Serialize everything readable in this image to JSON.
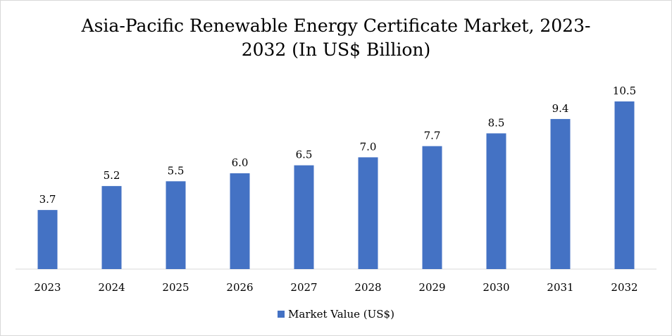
{
  "chart_data": {
    "type": "bar",
    "title_line1": "Asia-Pacific Renewable Energy Certificate Market, 2023-",
    "title_line2": "2032 (In US$ Billion)",
    "categories": [
      "2023",
      "2024",
      "2025",
      "2026",
      "2027",
      "2028",
      "2029",
      "2030",
      "2031",
      "2032"
    ],
    "series": [
      {
        "name": "Market Value (US$)",
        "values": [
          3.7,
          5.2,
          5.5,
          6.0,
          6.5,
          7.0,
          7.7,
          8.5,
          9.4,
          10.5
        ],
        "labels": [
          "3.7",
          "5.2",
          "5.5",
          "6.0",
          "6.5",
          "7.0",
          "7.7",
          "8.5",
          "9.4",
          "10.5"
        ],
        "color": "#4472C4"
      }
    ],
    "ylim": [
      0,
      10.5
    ],
    "grid": false,
    "legend_position": "bottom"
  }
}
